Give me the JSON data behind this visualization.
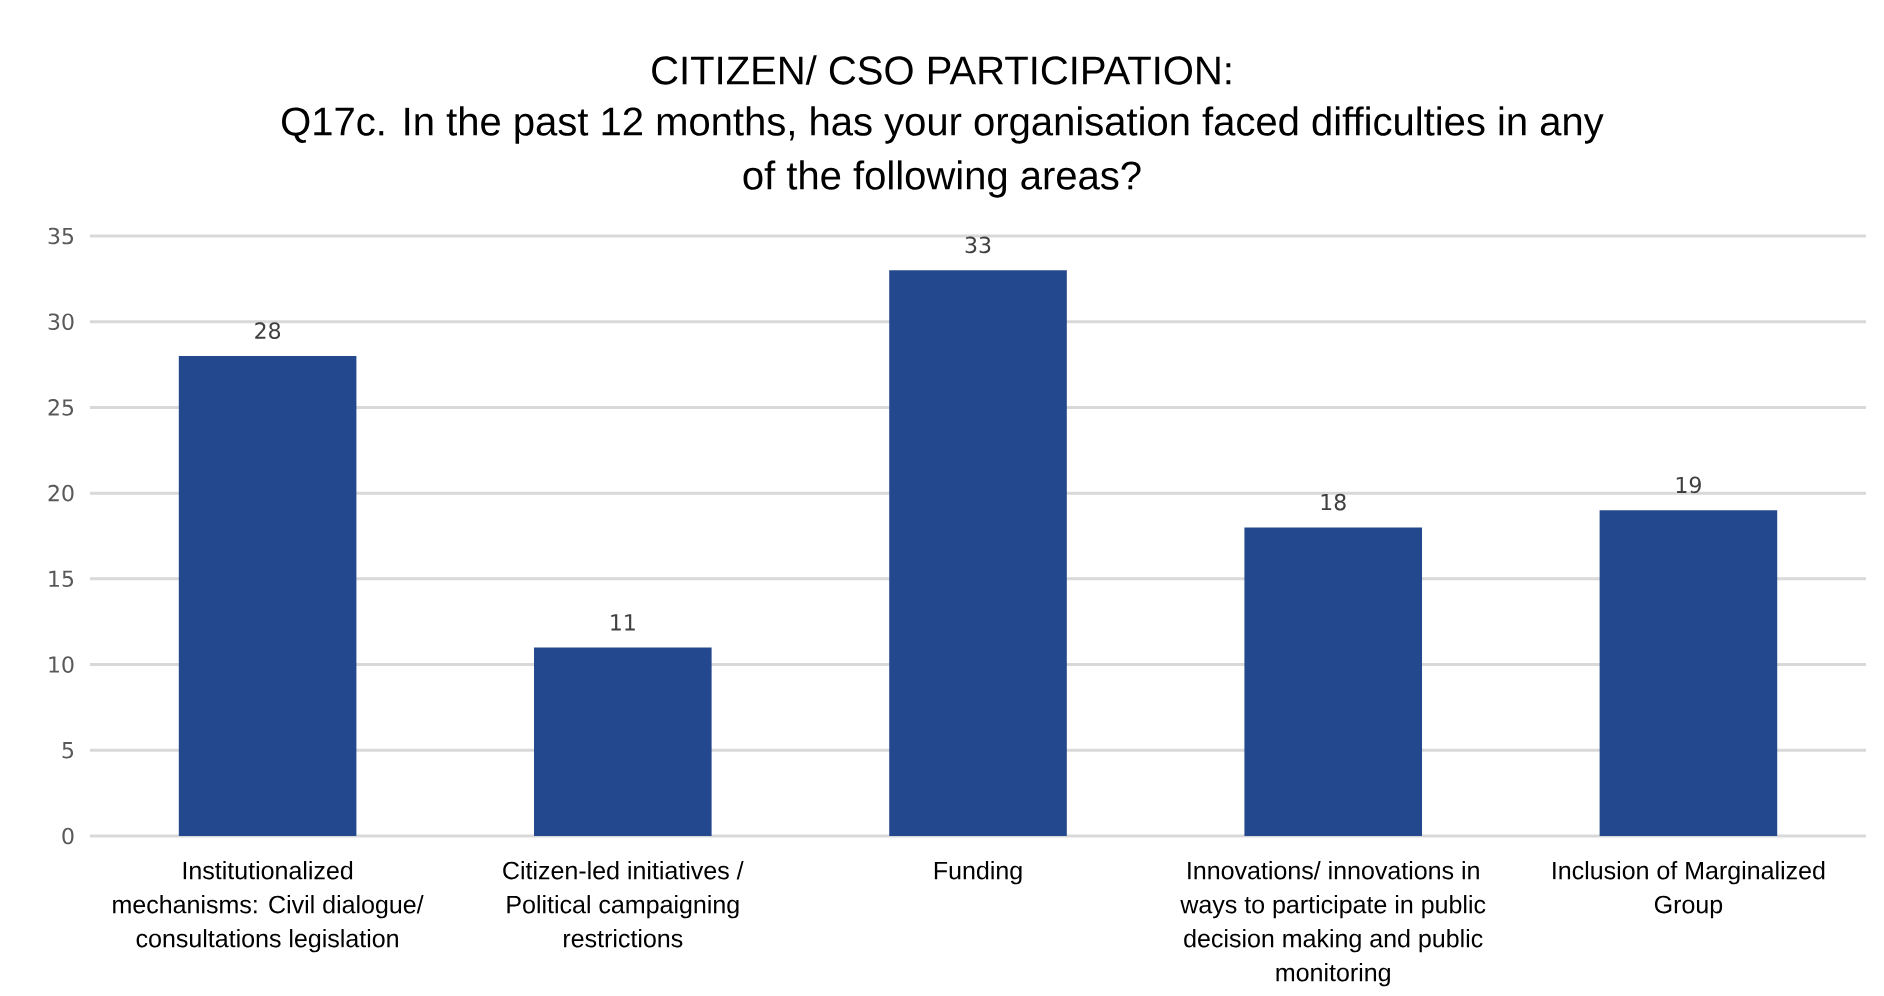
{
  "chart_data": {
    "type": "bar",
    "title": "CITIZEN/ CSO PARTICIPATION:",
    "subtitle": "Q17c. In the past 12 months, has your organisation faced difficulties in any of the following areas?",
    "categories": [
      "Institutionalized mechanisms: Civil dialogue/ consultations legislation",
      "Citizen-led initiatives / Political campaigning restrictions",
      "Funding",
      "Innovations/ innovations in ways to participate in public decision making and public monitoring",
      "Inclusion of Marginalized Group"
    ],
    "values": [
      28,
      11,
      33,
      18,
      19
    ],
    "color": "#24488d",
    "ylim": [
      0,
      35
    ],
    "yticks": [
      0,
      5,
      10,
      15,
      20,
      25,
      30,
      35
    ],
    "grid": "y",
    "data_labels": true
  }
}
